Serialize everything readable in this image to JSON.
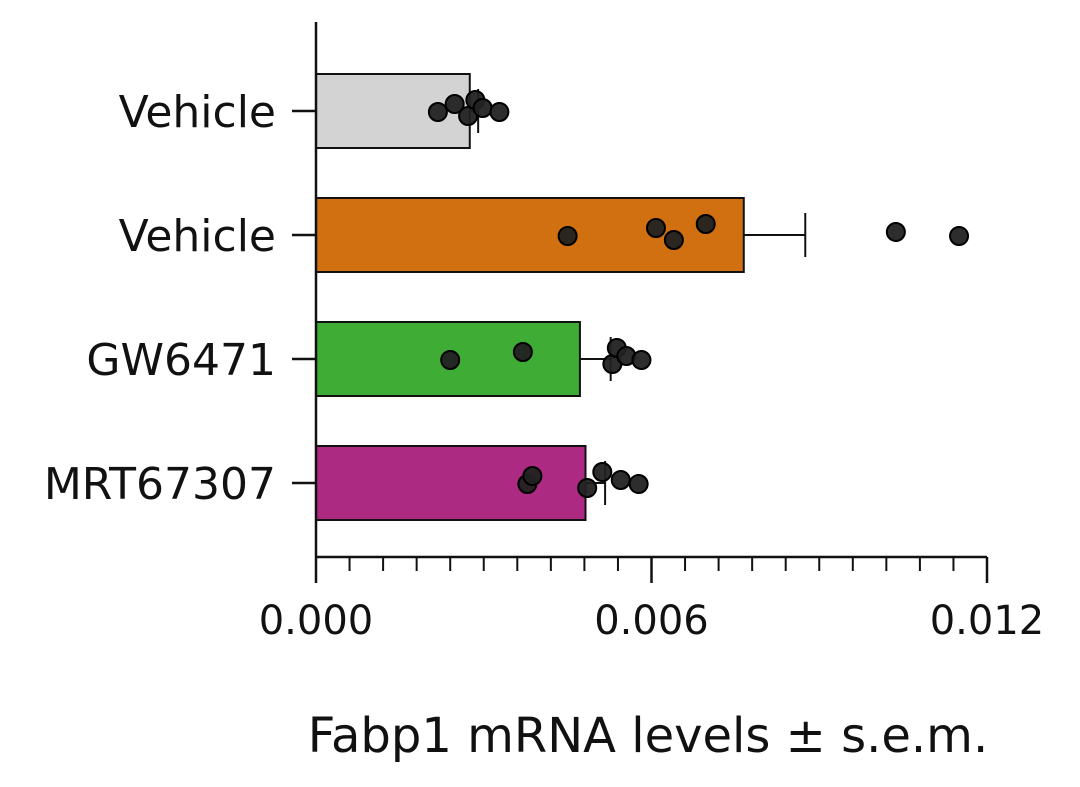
{
  "chart_data": {
    "type": "bar",
    "orientation": "horizontal",
    "categories": [
      "Vehicle",
      "Vehicle",
      "GW6471",
      "MRT67307"
    ],
    "values": [
      0.00275,
      0.00765,
      0.00472,
      0.00482
    ],
    "sem": [
      0.00015,
      0.0011,
      0.00055,
      0.00035
    ],
    "colors": [
      "#d3d3d3",
      "#d07010",
      "#3fac35",
      "#ad2a82"
    ],
    "points": [
      [
        0.00218,
        0.00248,
        0.00272,
        0.00285,
        0.00298,
        0.00328
      ],
      [
        0.0045,
        0.00608,
        0.0064,
        0.00697,
        0.01037,
        0.0115
      ],
      [
        0.0024,
        0.0037,
        0.0053,
        0.00538,
        0.00555,
        0.00582
      ],
      [
        0.00378,
        0.00387,
        0.00485,
        0.00512,
        0.00545,
        0.00577
      ]
    ],
    "xlim": [
      0,
      0.012
    ],
    "xticks": [
      "0.000",
      "0.006",
      "0.012"
    ],
    "xtick_values": [
      0,
      0.006,
      0.012
    ],
    "xlabel": "Fabp1 mRNA levels ± s.e.m.",
    "ylabel": "",
    "title": "",
    "grid": false,
    "legend": "none"
  }
}
